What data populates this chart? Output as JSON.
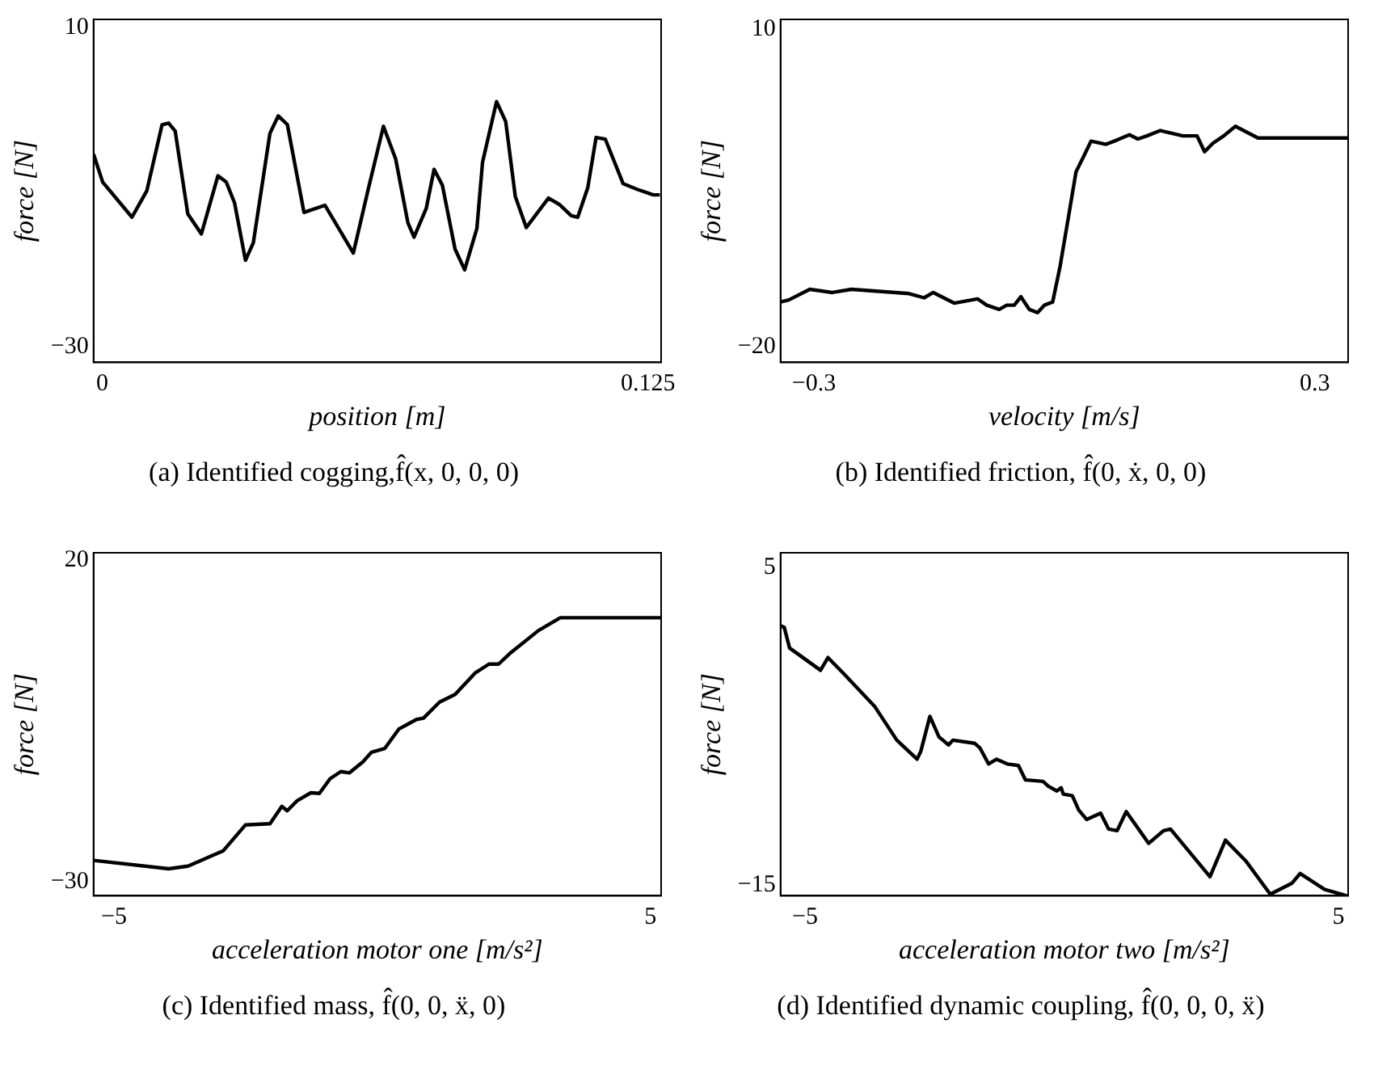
{
  "chart_data": [
    {
      "type": "line",
      "title": "(a) Identified cogging,f̂(x, 0, 0, 0)",
      "xlabel": "position [m]",
      "ylabel": "force [N]",
      "xlim": [
        -0.002,
        0.128
      ],
      "xticks": [
        0,
        0.125
      ],
      "ylim": [
        -32,
        11
      ],
      "yticks": [
        {
          "value": -30,
          "label": "−30"
        },
        10
      ],
      "grid": false,
      "legend": false,
      "marker": "none",
      "series": [
        {
          "color": "#000000",
          "x": [
            -0.002,
            0.0001,
            0.0068,
            0.0102,
            0.0137,
            0.0152,
            0.0167,
            0.0196,
            0.0227,
            0.0265,
            0.0284,
            0.0303,
            0.0328,
            0.0346,
            0.0384,
            0.0403,
            0.0424,
            0.0462,
            0.051,
            0.0575,
            0.061,
            0.0644,
            0.0672,
            0.07,
            0.0714,
            0.0742,
            0.076,
            0.0779,
            0.0808,
            0.083,
            0.0858,
            0.0871,
            0.0903,
            0.0924,
            0.0946,
            0.0971,
            0.1022,
            0.1047,
            0.1074,
            0.1089,
            0.1112,
            0.1131,
            0.1152,
            0.1193,
            0.1225,
            0.1262,
            0.1277
          ],
          "values": [
            -5.9,
            -9.4,
            -13.8,
            -10.5,
            -2.2,
            -2.0,
            -3.0,
            -13.4,
            -15.9,
            -8.6,
            -9.4,
            -12.0,
            -19.2,
            -17.0,
            -3.3,
            -1.1,
            -2.2,
            -13.2,
            -12.3,
            -18.3,
            -10.1,
            -2.4,
            -6.5,
            -14.5,
            -16.3,
            -12.7,
            -7.8,
            -9.8,
            -17.8,
            -20.4,
            -15.2,
            -6.9,
            0.7,
            -1.8,
            -11.2,
            -15.1,
            -11.4,
            -12.2,
            -13.6,
            -13.8,
            -10.1,
            -3.8,
            -4.0,
            -9.6,
            -10.3,
            -11.0,
            -11.0
          ]
        }
      ]
    },
    {
      "type": "line",
      "title": "(b) Identified friction, f̂(0, ẋ, 0, 0)",
      "xlabel": "velocity [m/s]",
      "ylabel": "force [N]",
      "xlim": [
        -0.34,
        0.34
      ],
      "xticks": [
        -0.3,
        0.3
      ],
      "ylim": [
        -21.5,
        10.9
      ],
      "yticks": [
        {
          "value": -20,
          "label": "−20"
        },
        10
      ],
      "grid": false,
      "legend": false,
      "marker": "none",
      "series": [
        {
          "color": "#000000",
          "x": [
            -0.34,
            -0.33,
            -0.305,
            -0.278,
            -0.255,
            -0.186,
            -0.168,
            -0.157,
            -0.132,
            -0.104,
            -0.093,
            -0.078,
            -0.069,
            -0.06,
            -0.052,
            -0.042,
            -0.032,
            -0.024,
            -0.014,
            -0.005,
            0.007,
            0.014,
            0.024,
            0.032,
            0.05,
            0.063,
            0.078,
            0.088,
            0.099,
            0.115,
            0.142,
            0.159,
            0.168,
            0.178,
            0.191,
            0.205,
            0.232,
            0.34
          ],
          "values": [
            -15.8,
            -15.6,
            -14.6,
            -14.9,
            -14.6,
            -15.0,
            -15.4,
            -14.9,
            -15.9,
            -15.5,
            -16.1,
            -16.5,
            -16.1,
            -16.1,
            -15.3,
            -16.5,
            -16.8,
            -16.1,
            -15.8,
            -12.4,
            -6.8,
            -3.5,
            -1.9,
            -0.6,
            -0.9,
            -0.5,
            0.0,
            -0.4,
            -0.1,
            0.4,
            -0.1,
            -0.1,
            -1.6,
            -0.8,
            -0.1,
            0.8,
            -0.3,
            -0.3
          ]
        }
      ]
    },
    {
      "type": "line",
      "title": "(c) Identified mass, f̂(0, 0, ẍ, 0)",
      "xlabel": "acceleration motor one [m/s²]",
      "ylabel": "force [N]",
      "xlim": [
        -5.38,
        5.2
      ],
      "xticks": [
        -5,
        5
      ],
      "ylim": [
        -32.2,
        21.1
      ],
      "yticks": [
        {
          "value": -30,
          "label": "−30"
        },
        20
      ],
      "grid": false,
      "legend": false,
      "marker": "none",
      "series": [
        {
          "color": "#000000",
          "x": [
            -5.38,
            -3.98,
            -3.62,
            -2.96,
            -2.55,
            -2.09,
            -1.87,
            -1.77,
            -1.58,
            -1.33,
            -1.17,
            -0.97,
            -0.77,
            -0.61,
            -0.36,
            -0.2,
            0.05,
            0.31,
            0.64,
            0.77,
            1.07,
            1.36,
            1.73,
            1.99,
            2.17,
            2.4,
            2.91,
            3.32,
            5.2
          ],
          "values": [
            -26.7,
            -28.0,
            -27.6,
            -25.2,
            -21.2,
            -21.0,
            -18.3,
            -19.0,
            -17.4,
            -16.2,
            -16.3,
            -14.0,
            -12.9,
            -13.1,
            -11.4,
            -9.9,
            -9.3,
            -6.3,
            -4.8,
            -4.6,
            -2.1,
            -0.9,
            2.4,
            3.8,
            3.8,
            5.6,
            9.0,
            11.0,
            11.0
          ]
        }
      ]
    },
    {
      "type": "line",
      "title": "(d) Identified dynamic coupling, f̂(0, 0, 0, ẍ)",
      "xlabel": "acceleration motor two [m/s²]",
      "ylabel": "force [N]",
      "xlim": [
        -5.46,
        5.18
      ],
      "xticks": [
        -5,
        5
      ],
      "ylim": [
        -15.7,
        5.9
      ],
      "yticks": [
        {
          "value": -15,
          "label": "−15"
        },
        5
      ],
      "grid": false,
      "legend": false,
      "marker": "none",
      "series": [
        {
          "color": "#000000",
          "x": [
            -5.46,
            -5.39,
            -5.29,
            -4.71,
            -4.57,
            -4.28,
            -3.69,
            -3.28,
            -2.9,
            -2.83,
            -2.66,
            -2.49,
            -2.31,
            -2.23,
            -1.82,
            -1.72,
            -1.56,
            -1.41,
            -1.21,
            -1.0,
            -0.87,
            -0.54,
            -0.44,
            -0.28,
            -0.2,
            -0.16,
            0.01,
            0.13,
            0.28,
            0.54,
            0.69,
            0.85,
            1.02,
            1.44,
            1.72,
            1.85,
            2.59,
            2.88,
            3.26,
            3.72,
            4.13,
            4.28,
            4.74,
            5.15
          ],
          "values": [
            1.3,
            1.2,
            -0.1,
            -1.5,
            -0.7,
            -1.7,
            -3.8,
            -5.9,
            -7.1,
            -6.6,
            -4.4,
            -5.7,
            -6.2,
            -5.9,
            -6.1,
            -6.4,
            -7.4,
            -7.1,
            -7.4,
            -7.5,
            -8.4,
            -8.5,
            -8.8,
            -9.1,
            -8.9,
            -9.3,
            -9.4,
            -10.3,
            -10.9,
            -10.5,
            -11.5,
            -11.6,
            -10.4,
            -12.4,
            -11.6,
            -11.5,
            -14.5,
            -12.2,
            -13.5,
            -15.6,
            -14.9,
            -14.3,
            -15.3,
            -15.7
          ]
        }
      ]
    }
  ]
}
